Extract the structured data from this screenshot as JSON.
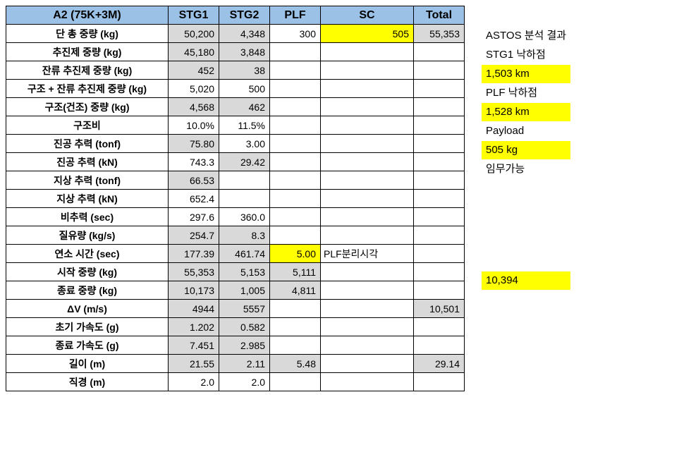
{
  "headers": {
    "title": "A2 (75K+3M)",
    "stg1": "STG1",
    "stg2": "STG2",
    "plf": "PLF",
    "sc": "SC",
    "total": "Total"
  },
  "rows": [
    {
      "label": "단 총 중량 (kg)",
      "stg1": {
        "v": "50,200",
        "c": "gray"
      },
      "stg2": {
        "v": "4,348",
        "c": "gray"
      },
      "plf": {
        "v": "300"
      },
      "sc": {
        "v": "505",
        "c": "yellow"
      },
      "total": {
        "v": "55,353",
        "c": "gray"
      }
    },
    {
      "label": "추진제 중량 (kg)",
      "stg1": {
        "v": "45,180",
        "c": "gray"
      },
      "stg2": {
        "v": "3,848",
        "c": "gray"
      },
      "plf": {
        "v": ""
      },
      "sc": {
        "v": ""
      },
      "total": {
        "v": ""
      }
    },
    {
      "label": "잔류 추진제 중량 (kg)",
      "stg1": {
        "v": "452",
        "c": "gray"
      },
      "stg2": {
        "v": "38",
        "c": "gray"
      },
      "plf": {
        "v": ""
      },
      "sc": {
        "v": ""
      },
      "total": {
        "v": ""
      }
    },
    {
      "label": "구조 + 잔류 추진제 중량 (kg)",
      "stg1": {
        "v": "5,020"
      },
      "stg2": {
        "v": "500"
      },
      "plf": {
        "v": ""
      },
      "sc": {
        "v": ""
      },
      "total": {
        "v": ""
      }
    },
    {
      "label": "구조(건조) 중량 (kg)",
      "stg1": {
        "v": "4,568",
        "c": "gray"
      },
      "stg2": {
        "v": "462",
        "c": "gray"
      },
      "plf": {
        "v": ""
      },
      "sc": {
        "v": ""
      },
      "total": {
        "v": ""
      }
    },
    {
      "label": "구조비",
      "stg1": {
        "v": "10.0%"
      },
      "stg2": {
        "v": "11.5%"
      },
      "plf": {
        "v": ""
      },
      "sc": {
        "v": ""
      },
      "total": {
        "v": ""
      }
    },
    {
      "label": "진공 추력 (tonf)",
      "stg1": {
        "v": "75.80",
        "c": "gray"
      },
      "stg2": {
        "v": "3.00"
      },
      "plf": {
        "v": ""
      },
      "sc": {
        "v": ""
      },
      "total": {
        "v": ""
      }
    },
    {
      "label": "진공 추력 (kN)",
      "stg1": {
        "v": "743.3"
      },
      "stg2": {
        "v": "29.42",
        "c": "gray"
      },
      "plf": {
        "v": ""
      },
      "sc": {
        "v": ""
      },
      "total": {
        "v": ""
      }
    },
    {
      "label": "지상 추력 (tonf)",
      "stg1": {
        "v": "66.53",
        "c": "gray"
      },
      "stg2": {
        "v": ""
      },
      "plf": {
        "v": ""
      },
      "sc": {
        "v": ""
      },
      "total": {
        "v": ""
      }
    },
    {
      "label": "지상 추력 (kN)",
      "stg1": {
        "v": "652.4"
      },
      "stg2": {
        "v": ""
      },
      "plf": {
        "v": ""
      },
      "sc": {
        "v": ""
      },
      "total": {
        "v": ""
      }
    },
    {
      "label": "비추력 (sec)",
      "stg1": {
        "v": "297.6"
      },
      "stg2": {
        "v": "360.0"
      },
      "plf": {
        "v": ""
      },
      "sc": {
        "v": ""
      },
      "total": {
        "v": ""
      }
    },
    {
      "label": "질유량 (kg/s)",
      "stg1": {
        "v": "254.7",
        "c": "gray"
      },
      "stg2": {
        "v": "8.3",
        "c": "gray"
      },
      "plf": {
        "v": ""
      },
      "sc": {
        "v": ""
      },
      "total": {
        "v": ""
      }
    },
    {
      "label": "연소 시간 (sec)",
      "stg1": {
        "v": "177.39",
        "c": "gray"
      },
      "stg2": {
        "v": "461.74",
        "c": "gray"
      },
      "plf": {
        "v": "5.00",
        "c": "yellow"
      },
      "sc": {
        "v": "PLF분리시각",
        "c": "",
        "align": "left"
      },
      "total": {
        "v": ""
      }
    },
    {
      "label": "시작 중량 (kg)",
      "stg1": {
        "v": "55,353",
        "c": "gray"
      },
      "stg2": {
        "v": "5,153",
        "c": "gray"
      },
      "plf": {
        "v": "5,111",
        "c": "gray"
      },
      "sc": {
        "v": ""
      },
      "total": {
        "v": ""
      }
    },
    {
      "label": "종료 중량 (kg)",
      "stg1": {
        "v": "10,173",
        "c": "gray"
      },
      "stg2": {
        "v": "1,005",
        "c": "gray"
      },
      "plf": {
        "v": "4,811",
        "c": "gray"
      },
      "sc": {
        "v": ""
      },
      "total": {
        "v": ""
      }
    },
    {
      "label": "ΔV (m/s)",
      "stg1": {
        "v": "4944",
        "c": "gray"
      },
      "stg2": {
        "v": "5557",
        "c": "gray"
      },
      "plf": {
        "v": ""
      },
      "sc": {
        "v": ""
      },
      "total": {
        "v": "10,501",
        "c": "gray"
      }
    },
    {
      "label": "초기 가속도 (g)",
      "stg1": {
        "v": "1.202",
        "c": "gray"
      },
      "stg2": {
        "v": "0.582",
        "c": "gray"
      },
      "plf": {
        "v": ""
      },
      "sc": {
        "v": ""
      },
      "total": {
        "v": ""
      }
    },
    {
      "label": "종료 가속도 (g)",
      "stg1": {
        "v": "7.451",
        "c": "gray"
      },
      "stg2": {
        "v": "2.985",
        "c": "gray"
      },
      "plf": {
        "v": ""
      },
      "sc": {
        "v": ""
      },
      "total": {
        "v": ""
      }
    },
    {
      "label": "길이 (m)",
      "stg1": {
        "v": "21.55",
        "c": "gray"
      },
      "stg2": {
        "v": "2.11",
        "c": "gray"
      },
      "plf": {
        "v": "5.48",
        "c": "gray"
      },
      "sc": {
        "v": ""
      },
      "total": {
        "v": "29.14",
        "c": "gray"
      }
    },
    {
      "label": "직경 (m)",
      "stg1": {
        "v": "2.0"
      },
      "stg2": {
        "v": "2.0"
      },
      "plf": {
        "v": ""
      },
      "sc": {
        "v": ""
      },
      "total": {
        "v": ""
      }
    }
  ],
  "side": {
    "items": [
      {
        "text": "ASTOS 분석 결과",
        "hl": false
      },
      {
        "text": "STG1 낙하점",
        "hl": false
      },
      {
        "text": "1,503 km",
        "hl": true
      },
      {
        "text": "PLF 낙하점",
        "hl": false
      },
      {
        "text": "1,528 km",
        "hl": true
      },
      {
        "text": "Payload",
        "hl": false
      },
      {
        "text": "505 kg",
        "hl": true
      },
      {
        "text": "임무가능",
        "hl": false
      }
    ],
    "dv_ref": "10,394"
  },
  "colors": {
    "header_bg": "#9bc2e6",
    "gray_bg": "#d9d9d9",
    "yellow_bg": "#ffff00",
    "border": "#000000",
    "page_bg": "#ffffff"
  }
}
